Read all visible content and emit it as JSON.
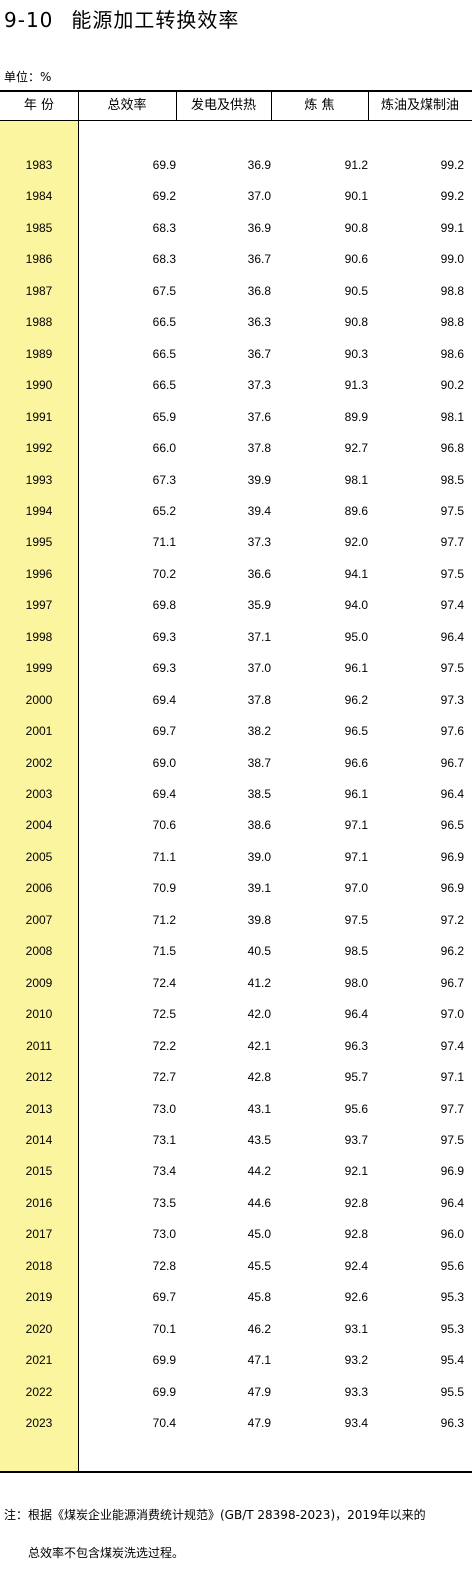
{
  "title": {
    "number": "9-10",
    "text": "能源加工转换效率"
  },
  "unit": "单位：%",
  "table": {
    "headers": [
      "年 份",
      "总效率",
      "发电及供热",
      "炼 焦",
      "炼油及煤制油"
    ],
    "rows": [
      [
        "1983",
        "69.9",
        "36.9",
        "91.2",
        "99.2"
      ],
      [
        "1984",
        "69.2",
        "37.0",
        "90.1",
        "99.2"
      ],
      [
        "1985",
        "68.3",
        "36.9",
        "90.8",
        "99.1"
      ],
      [
        "1986",
        "68.3",
        "36.7",
        "90.6",
        "99.0"
      ],
      [
        "1987",
        "67.5",
        "36.8",
        "90.5",
        "98.8"
      ],
      [
        "1988",
        "66.5",
        "36.3",
        "90.8",
        "98.8"
      ],
      [
        "1989",
        "66.5",
        "36.7",
        "90.3",
        "98.6"
      ],
      [
        "1990",
        "66.5",
        "37.3",
        "91.3",
        "90.2"
      ],
      [
        "1991",
        "65.9",
        "37.6",
        "89.9",
        "98.1"
      ],
      [
        "1992",
        "66.0",
        "37.8",
        "92.7",
        "96.8"
      ],
      [
        "1993",
        "67.3",
        "39.9",
        "98.1",
        "98.5"
      ],
      [
        "1994",
        "65.2",
        "39.4",
        "89.6",
        "97.5"
      ],
      [
        "1995",
        "71.1",
        "37.3",
        "92.0",
        "97.7"
      ],
      [
        "1996",
        "70.2",
        "36.6",
        "94.1",
        "97.5"
      ],
      [
        "1997",
        "69.8",
        "35.9",
        "94.0",
        "97.4"
      ],
      [
        "1998",
        "69.3",
        "37.1",
        "95.0",
        "96.4"
      ],
      [
        "1999",
        "69.3",
        "37.0",
        "96.1",
        "97.5"
      ],
      [
        "2000",
        "69.4",
        "37.8",
        "96.2",
        "97.3"
      ],
      [
        "2001",
        "69.7",
        "38.2",
        "96.5",
        "97.6"
      ],
      [
        "2002",
        "69.0",
        "38.7",
        "96.6",
        "96.7"
      ],
      [
        "2003",
        "69.4",
        "38.5",
        "96.1",
        "96.4"
      ],
      [
        "2004",
        "70.6",
        "38.6",
        "97.1",
        "96.5"
      ],
      [
        "2005",
        "71.1",
        "39.0",
        "97.1",
        "96.9"
      ],
      [
        "2006",
        "70.9",
        "39.1",
        "97.0",
        "96.9"
      ],
      [
        "2007",
        "71.2",
        "39.8",
        "97.5",
        "97.2"
      ],
      [
        "2008",
        "71.5",
        "40.5",
        "98.5",
        "96.2"
      ],
      [
        "2009",
        "72.4",
        "41.2",
        "98.0",
        "96.7"
      ],
      [
        "2010",
        "72.5",
        "42.0",
        "96.4",
        "97.0"
      ],
      [
        "2011",
        "72.2",
        "42.1",
        "96.3",
        "97.4"
      ],
      [
        "2012",
        "72.7",
        "42.8",
        "95.7",
        "97.1"
      ],
      [
        "2013",
        "73.0",
        "43.1",
        "95.6",
        "97.7"
      ],
      [
        "2014",
        "73.1",
        "43.5",
        "93.7",
        "97.5"
      ],
      [
        "2015",
        "73.4",
        "44.2",
        "92.1",
        "96.9"
      ],
      [
        "2016",
        "73.5",
        "44.6",
        "92.8",
        "96.4"
      ],
      [
        "2017",
        "73.0",
        "45.0",
        "92.8",
        "96.0"
      ],
      [
        "2018",
        "72.8",
        "45.5",
        "92.4",
        "95.6"
      ],
      [
        "2019",
        "69.7",
        "45.8",
        "92.6",
        "95.3"
      ],
      [
        "2020",
        "70.1",
        "46.2",
        "93.1",
        "95.3"
      ],
      [
        "2021",
        "69.9",
        "47.1",
        "93.2",
        "95.4"
      ],
      [
        "2022",
        "69.9",
        "47.9",
        "93.3",
        "95.5"
      ],
      [
        "2023",
        "70.4",
        "47.9",
        "93.4",
        "96.3"
      ]
    ]
  },
  "notes": [
    "注：根据《煤炭企业能源消费统计规范》(GB/T 28398-2023)，2019年以来的",
    "　　总效率不包含煤炭洗选过程。"
  ],
  "colors": {
    "year_column_bg": "#fbf59f",
    "rule": "#000000"
  }
}
